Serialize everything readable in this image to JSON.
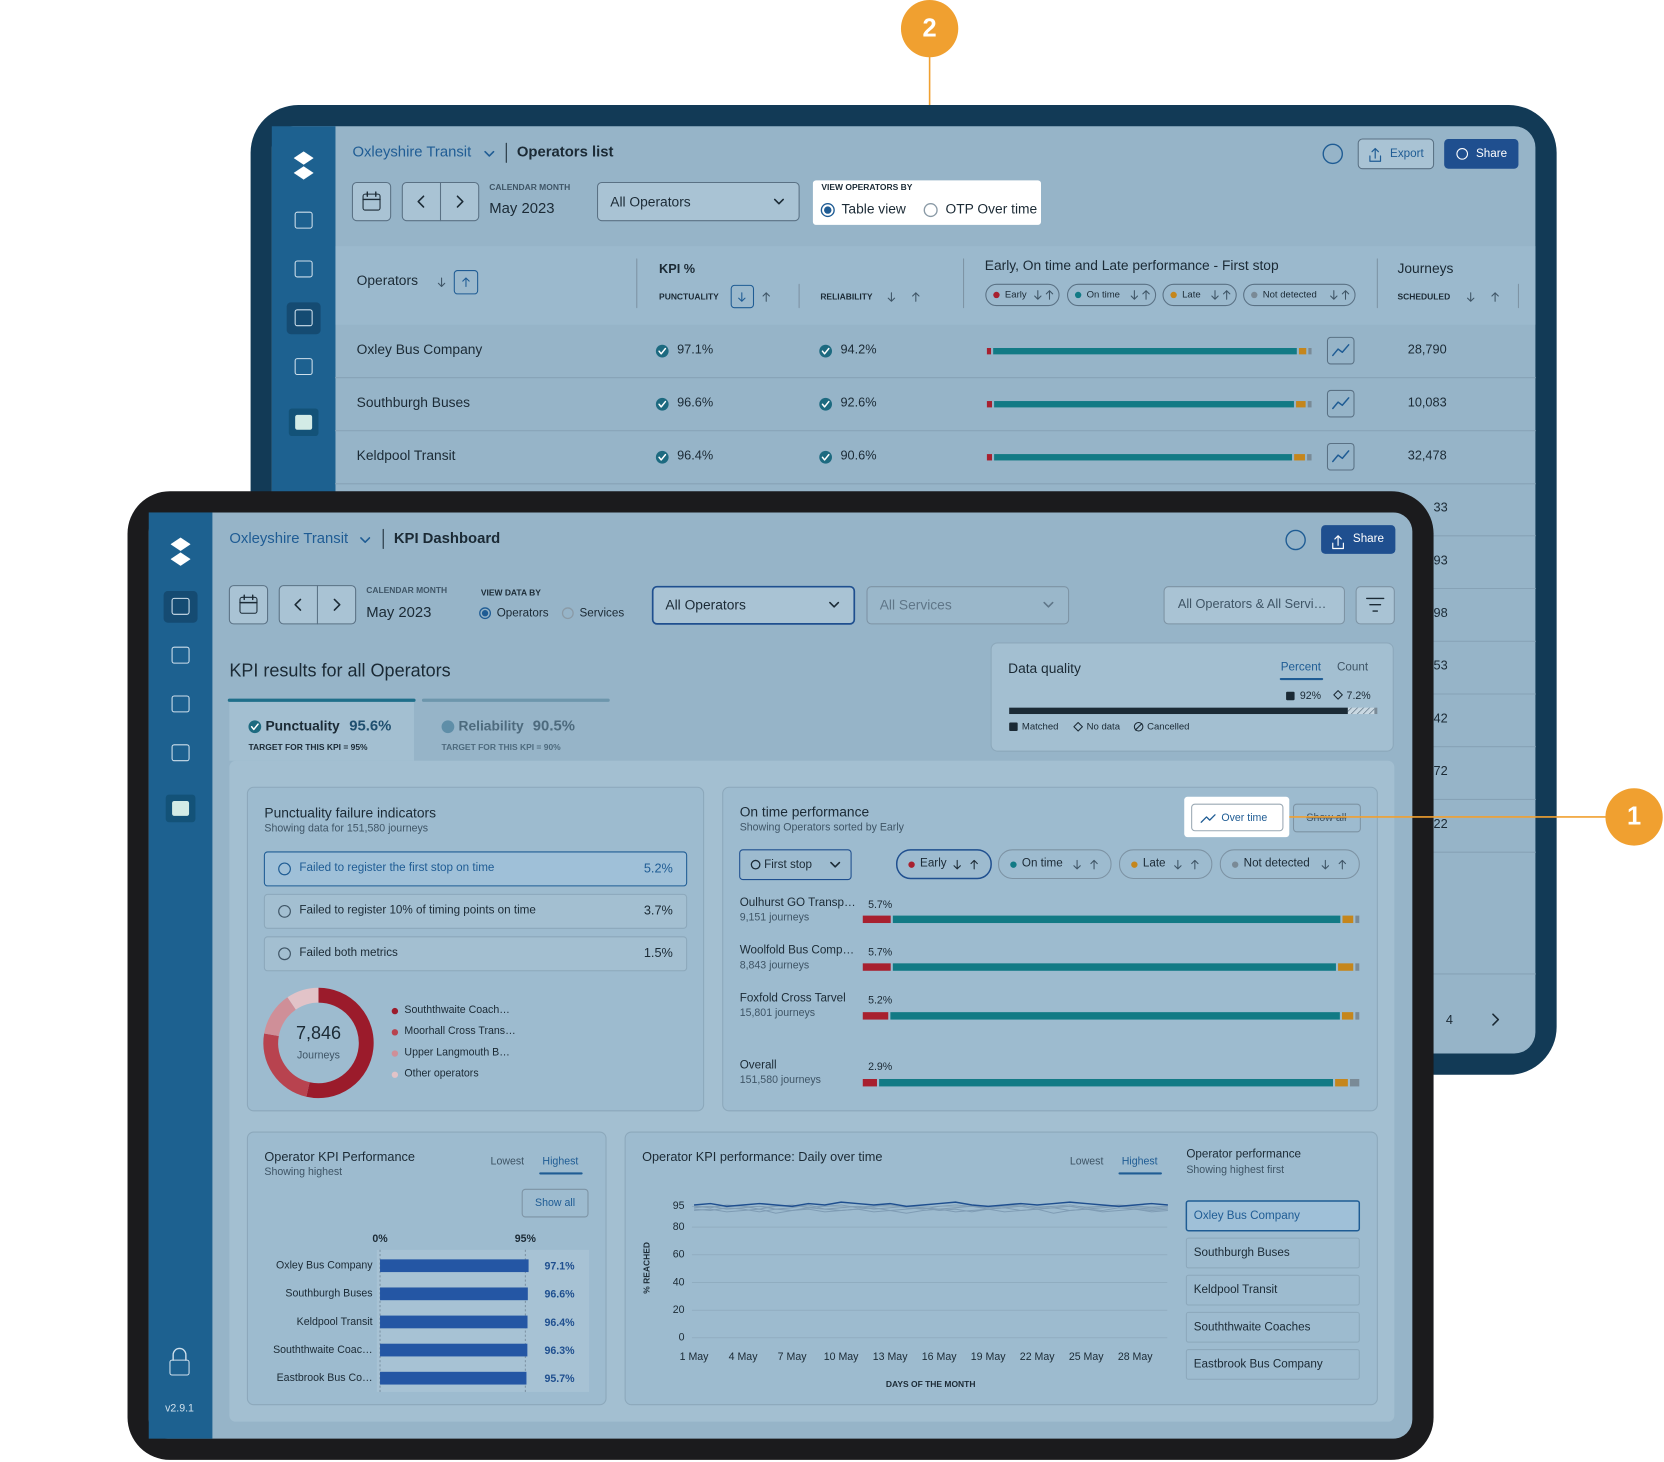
{
  "callouts": {
    "back": "2",
    "front": "1"
  },
  "back": {
    "org": "Oxleyshire Transit",
    "page": "Operators list",
    "export": "Export",
    "share": "Share",
    "month_label": "CALENDAR MONTH",
    "month": "May 2023",
    "operators_select": "All Operators",
    "view_by_label": "VIEW OPERATORS BY",
    "view_options": [
      "Table view",
      "OTP Over time"
    ],
    "headers": {
      "operators": "Operators",
      "kpi": "KPI %",
      "punctuality": "PUNCTUALITY",
      "reliability": "RELIABILITY",
      "performance": "Early, On time and Late performance - First stop",
      "journeys": "Journeys",
      "scheduled": "SCHEDULED"
    },
    "legend": [
      "Early",
      "On time",
      "Late",
      "Not detected"
    ],
    "colors": [
      "#a8202f",
      "#127a85",
      "#c5861c",
      "#7a8a96"
    ],
    "rows": [
      {
        "name": "Oxley Bus Company",
        "punctuality": "97.1%",
        "reliability": "94.2%",
        "scheduled": "28,790",
        "bar": [
          1.3,
          95.4,
          2.3,
          1.0
        ]
      },
      {
        "name": "Southburgh Buses",
        "punctuality": "96.6%",
        "reliability": "92.6%",
        "scheduled": "10,083",
        "bar": [
          1.6,
          94.2,
          3.0,
          1.2
        ]
      },
      {
        "name": "Keldpool Transit",
        "punctuality": "96.4%",
        "reliability": "90.6%",
        "scheduled": "32,478",
        "bar": [
          1.6,
          93.6,
          3.4,
          1.4
        ]
      }
    ],
    "hidden_scheduled": [
      "33",
      "93",
      "98",
      "53",
      "42",
      "72",
      "22"
    ],
    "pagination": "4"
  },
  "front": {
    "org": "Oxleyshire Transit",
    "page": "KPI Dashboard",
    "share": "Share",
    "month_label": "CALENDAR MONTH",
    "month": "May 2023",
    "view_by_label": "VIEW DATA BY",
    "view_options": [
      "Operators",
      "Services"
    ],
    "operators_select": "All Operators",
    "services_select": "All Services",
    "scope": "All Operators & All Servi…",
    "heading": "KPI results for all Operators",
    "tabs": [
      {
        "name": "Punctuality",
        "value": "95.6%",
        "target": "TARGET FOR THIS KPI = 95%"
      },
      {
        "name": "Reliability",
        "value": "90.5%",
        "target": "TARGET FOR THIS KPI = 90%"
      }
    ],
    "data_quality": {
      "title": "Data quality",
      "tabs": [
        "Percent",
        "Count"
      ],
      "segments": [
        {
          "name": "Matched",
          "value": 92,
          "label": "92%"
        },
        {
          "name": "No data",
          "value": 7.2,
          "label": "7.2%"
        },
        {
          "name": "Cancelled",
          "value": 0.8
        }
      ]
    },
    "failure": {
      "title": "Punctuality failure indicators",
      "subtitle": "Showing data for 151,580 journeys",
      "items": [
        {
          "label": "Failed to register the first stop on time",
          "value": "5.2%"
        },
        {
          "label": "Failed to register 10% of timing points on time",
          "value": "3.7%"
        },
        {
          "label": "Failed both metrics",
          "value": "1.5%"
        }
      ]
    },
    "donut": {
      "total": "7,846",
      "unit": "Journeys",
      "segments": [
        {
          "name": "Souththwaite Coach…",
          "value": 4200,
          "color": "#9b1b2b"
        },
        {
          "name": "Moorhall Cross Trans…",
          "value": 1900,
          "color": "#b8434f"
        },
        {
          "name": "Upper Langmouth B…",
          "value": 1000,
          "color": "#cf8f98"
        },
        {
          "name": "Other operators",
          "value": 746,
          "color": "#e2c3c8"
        }
      ]
    },
    "otp": {
      "title": "On time performance",
      "subtitle": "Showing Operators sorted by Early",
      "buttons": [
        "Over time",
        "Show all"
      ],
      "stop": "First stop",
      "legend": [
        "Early",
        "On time",
        "Late",
        "Not detected"
      ],
      "colors": [
        "#a8202f",
        "#127a85",
        "#c5861c",
        "#7a8a96"
      ],
      "rows": [
        {
          "name": "Oulhurst GO Transp…",
          "journeys": "9,151 journeys",
          "values": [
            5.7,
            91.3,
            2.2,
            0.8
          ],
          "early_label": "5.7%"
        },
        {
          "name": "Woolfold Bus Comp…",
          "journeys": "8,843 journeys",
          "values": [
            5.7,
            90.4,
            3.1,
            0.8
          ],
          "early_label": "5.7%"
        },
        {
          "name": "Foxfold Cross Tarvel",
          "journeys": "15,801 journeys",
          "values": [
            5.2,
            91.7,
            2.3,
            0.8
          ],
          "early_label": "5.2%"
        },
        {
          "name": "Overall",
          "journeys": "151,580 journeys",
          "values": [
            2.9,
            92.6,
            2.6,
            1.9
          ],
          "early_label": "2.9%"
        }
      ]
    },
    "kpi_chart": {
      "title": "Operator KPI Performance",
      "subtitle": "Showing highest",
      "toggle": [
        "Lowest",
        "Highest"
      ],
      "show_all": "Show all",
      "categories": [
        "Oxley Bus Company",
        "Southburgh Buses",
        "Keldpool Transit",
        "Souththwaite Coac…",
        "Eastbrook Bus Co…"
      ],
      "values": [
        97.1,
        96.6,
        96.4,
        96.3,
        95.7
      ],
      "value_labels": [
        "97.1%",
        "96.6%",
        "96.4%",
        "96.3%",
        "95.7%"
      ],
      "xlim": [
        0,
        100
      ],
      "xticks": [
        {
          "value": 0,
          "label": "0%"
        },
        {
          "value": 95,
          "label": "95%"
        }
      ],
      "color": "#2456a4"
    },
    "daily_chart": {
      "title": "Operator KPI performance: Daily over time",
      "toggle": [
        "Lowest",
        "Highest"
      ],
      "y_label": "% REACHED",
      "x_label": "DAYS OF THE MONTH",
      "categories": [
        "1 May",
        null,
        null,
        "4 May",
        null,
        null,
        "7 May",
        null,
        null,
        "10 May",
        null,
        null,
        "13 May",
        null,
        null,
        "16 May",
        null,
        null,
        "19 May",
        null,
        null,
        "22 May",
        null,
        null,
        "25 May",
        null,
        null,
        "28 May",
        null,
        null
      ],
      "ylim": [
        0,
        100
      ],
      "yticks": [
        0,
        20,
        40,
        60,
        80,
        95
      ],
      "list_title": "Operator performance",
      "list_subtitle": "Showing highest first",
      "series": [
        {
          "name": "Oxley Bus Company",
          "color": "#1f4f8f",
          "values": [
            96,
            97,
            95,
            96,
            97,
            96,
            95,
            97,
            96,
            98,
            97,
            96,
            97,
            95,
            96,
            97,
            98,
            96,
            95,
            96,
            97,
            96,
            97,
            98,
            97,
            96,
            95,
            96,
            97,
            96
          ]
        },
        {
          "name": "Southburgh Buses",
          "color": "#7f9cb4",
          "values": [
            95,
            94,
            96,
            95,
            93,
            95,
            96,
            94,
            95,
            96,
            94,
            95,
            96,
            94,
            93,
            95,
            96,
            95,
            94,
            95,
            96,
            94,
            95,
            96,
            94,
            95,
            96,
            95,
            94,
            95
          ]
        },
        {
          "name": "Keldpool Transit",
          "color": "#7f9cb4",
          "values": [
            94,
            95,
            93,
            94,
            95,
            93,
            94,
            96,
            93,
            94,
            95,
            93,
            94,
            95,
            94,
            93,
            94,
            95,
            93,
            94,
            95,
            93,
            94,
            95,
            93,
            94,
            95,
            94,
            93,
            94
          ]
        },
        {
          "name": "Souththwaite Coaches",
          "color": "#7f9cb4",
          "values": [
            93,
            92,
            94,
            93,
            91,
            93,
            92,
            94,
            93,
            92,
            93,
            94,
            92,
            93,
            94,
            92,
            93,
            91,
            93,
            94,
            92,
            93,
            94,
            92,
            93,
            92,
            94,
            93,
            92,
            93
          ]
        },
        {
          "name": "Eastbrook Bus Company",
          "color": "#7f9cb4",
          "values": [
            92,
            93,
            91,
            92,
            93,
            90,
            92,
            93,
            91,
            92,
            93,
            91,
            92,
            90,
            92,
            93,
            91,
            92,
            93,
            91,
            92,
            93,
            90,
            92,
            93,
            91,
            92,
            93,
            91,
            92
          ]
        }
      ]
    },
    "version": "v2.9.1"
  }
}
